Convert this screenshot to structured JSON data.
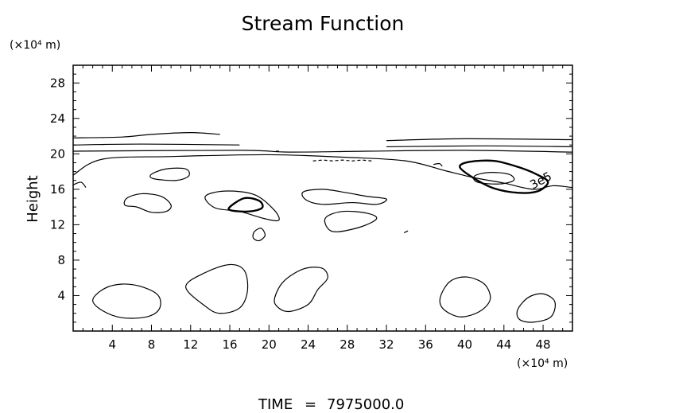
{
  "chart_data": {
    "type": "contour",
    "title": "Stream Function",
    "ylabel": "Height",
    "x_unit": "(×10⁴ m)",
    "y_unit": "(×10⁴ m)",
    "xlim": [
      0,
      51
    ],
    "ylim": [
      0,
      30
    ],
    "x_ticks": [
      4,
      8,
      12,
      16,
      20,
      24,
      28,
      32,
      36,
      40,
      44,
      48
    ],
    "y_ticks": [
      4,
      8,
      12,
      16,
      20,
      24,
      28
    ],
    "contour_label": "3e5",
    "contours": [
      {
        "level": "low",
        "points": [
          [
            3,
            2.3
          ],
          [
            2,
            3.5
          ],
          [
            3.2,
            4.8
          ],
          [
            5,
            5.3
          ],
          [
            7,
            5
          ],
          [
            8.7,
            4
          ],
          [
            8.8,
            2.5
          ],
          [
            7.5,
            1.6
          ],
          [
            5,
            1.5
          ]
        ]
      },
      {
        "level": "low",
        "points": [
          [
            11.5,
            5
          ],
          [
            13.5,
            6.6
          ],
          [
            16,
            7.5
          ],
          [
            17.5,
            6.8
          ],
          [
            17.8,
            4.5
          ],
          [
            17,
            2.6
          ],
          [
            15,
            2
          ],
          [
            13.5,
            2.8
          ]
        ]
      },
      {
        "level": "low",
        "points": [
          [
            20.6,
            3.8
          ],
          [
            21.5,
            5.6
          ],
          [
            23.5,
            7
          ],
          [
            25.4,
            7.1
          ],
          [
            26,
            6
          ],
          [
            25,
            4.7
          ],
          [
            24,
            3
          ],
          [
            22,
            2.2
          ],
          [
            20.8,
            2.8
          ]
        ]
      },
      {
        "level": "low",
        "points": [
          [
            37.5,
            3.8
          ],
          [
            38.5,
            5.6
          ],
          [
            40.2,
            6.1
          ],
          [
            42,
            5.3
          ],
          [
            42.6,
            3.6
          ],
          [
            41.5,
            2.2
          ],
          [
            39.5,
            1.6
          ],
          [
            37.8,
            2.5
          ]
        ]
      },
      {
        "level": "low",
        "points": [
          [
            45.4,
            2.4
          ],
          [
            46.5,
            3.8
          ],
          [
            48,
            4.2
          ],
          [
            49.2,
            3.3
          ],
          [
            48.8,
            1.6
          ],
          [
            47,
            1
          ],
          [
            45.6,
            1.3
          ]
        ]
      },
      {
        "level": "low",
        "points": [
          [
            5.5,
            15
          ],
          [
            7,
            15.5
          ],
          [
            9,
            15.2
          ],
          [
            10,
            14.2
          ],
          [
            9.5,
            13.5
          ],
          [
            8,
            13.4
          ],
          [
            6.5,
            14
          ],
          [
            5.3,
            14.2
          ]
        ]
      },
      {
        "level": "low",
        "points": [
          [
            8,
            17.7
          ],
          [
            9.5,
            18.3
          ],
          [
            11.5,
            18.3
          ],
          [
            11.8,
            17.5
          ],
          [
            10.5,
            17
          ],
          [
            8.2,
            17.2
          ]
        ]
      },
      {
        "level": "low",
        "points": [
          [
            13.5,
            15.2
          ],
          [
            15.5,
            15.8
          ],
          [
            18.5,
            15.4
          ],
          [
            20.5,
            13.7
          ],
          [
            21,
            12.5
          ],
          [
            19.5,
            12.7
          ],
          [
            17,
            13.5
          ],
          [
            14.5,
            13.9
          ]
        ]
      },
      {
        "level": "low",
        "points": [
          [
            18.5,
            11.2
          ],
          [
            19.2,
            11.6
          ],
          [
            19.6,
            10.8
          ],
          [
            19,
            10.2
          ],
          [
            18.4,
            10.5
          ]
        ]
      },
      {
        "level": "low",
        "points": [
          [
            23.5,
            15.7
          ],
          [
            25.5,
            16
          ],
          [
            28,
            15.6
          ],
          [
            30,
            15.2
          ],
          [
            32,
            14.9
          ],
          [
            31,
            14.3
          ],
          [
            28.5,
            14.5
          ],
          [
            25.5,
            14.3
          ],
          [
            23.8,
            14.8
          ]
        ]
      },
      {
        "level": "low",
        "points": [
          [
            25.8,
            12.8
          ],
          [
            27.5,
            13.5
          ],
          [
            30,
            13.3
          ],
          [
            31,
            12.7
          ],
          [
            29.5,
            11.8
          ],
          [
            27,
            11.2
          ],
          [
            26,
            11.6
          ]
        ]
      },
      {
        "level": "low",
        "points": [
          [
            0,
            17.6
          ],
          [
            3,
            19.4
          ],
          [
            10,
            19.7
          ],
          [
            20,
            19.9
          ],
          [
            28,
            19.6
          ],
          [
            34,
            19.2
          ],
          [
            38,
            18.1
          ],
          [
            41,
            17.3
          ],
          [
            44,
            16.7
          ],
          [
            47,
            16
          ],
          [
            49,
            16.4
          ],
          [
            51,
            16.2
          ]
        ]
      },
      {
        "level": "low",
        "points": [
          [
            0,
            16.5
          ],
          [
            0.8,
            16.8
          ],
          [
            1.3,
            16.2
          ]
        ]
      },
      {
        "level": "low",
        "points": [
          [
            0,
            20.3
          ],
          [
            17,
            20.4
          ],
          [
            22,
            20.2
          ],
          [
            30,
            20.3
          ],
          [
            40,
            20.4
          ],
          [
            51,
            20.2
          ]
        ]
      },
      {
        "level": "low",
        "points": [
          [
            0,
            21
          ],
          [
            7,
            21.1
          ],
          [
            17,
            21
          ]
        ]
      },
      {
        "level": "low",
        "points": [
          [
            32,
            20.8
          ],
          [
            42,
            20.9
          ],
          [
            51,
            20.8
          ]
        ]
      },
      {
        "level": "low",
        "points": [
          [
            0,
            21.8
          ],
          [
            5,
            21.9
          ],
          [
            8,
            22.2
          ],
          [
            12,
            22.4
          ],
          [
            15,
            22.2
          ]
        ]
      },
      {
        "level": "low",
        "points": [
          [
            32,
            21.5
          ],
          [
            40,
            21.7
          ],
          [
            51,
            21.6
          ]
        ]
      },
      {
        "level": "low",
        "points": [
          [
            36.8,
            18.8
          ],
          [
            37.4,
            18.9
          ],
          [
            37.7,
            18.6
          ]
        ]
      },
      {
        "level": "low",
        "points": [
          [
            33.8,
            11.1
          ],
          [
            34.2,
            11.3
          ]
        ]
      },
      {
        "level": "low",
        "points": [
          [
            41,
            17.5
          ],
          [
            42.5,
            17.9
          ],
          [
            44.5,
            17.7
          ],
          [
            45,
            17
          ],
          [
            43.5,
            16.6
          ],
          [
            41.3,
            16.8
          ]
        ]
      },
      {
        "level": "bold",
        "points": [
          [
            16,
            14
          ],
          [
            17.5,
            15
          ],
          [
            19,
            14.7
          ],
          [
            19.3,
            13.9
          ],
          [
            18,
            13.5
          ],
          [
            16.2,
            13.6
          ]
        ]
      },
      {
        "level": "bold",
        "points": [
          [
            39.5,
            18.5
          ],
          [
            40.5,
            19.1
          ],
          [
            43,
            19.2
          ],
          [
            45.5,
            18.5
          ],
          [
            47.5,
            17.6
          ],
          [
            48.5,
            16.8
          ],
          [
            47.5,
            15.8
          ],
          [
            45.5,
            15.6
          ],
          [
            43,
            16.1
          ],
          [
            41,
            17.2
          ]
        ]
      }
    ],
    "dashed_segments": [
      {
        "points": [
          [
            24.5,
            19.2
          ],
          [
            25.5,
            19.3
          ],
          [
            26.5,
            19.2
          ],
          [
            27.5,
            19.3
          ],
          [
            28.5,
            19.2
          ],
          [
            29.5,
            19.3
          ],
          [
            30.5,
            19.2
          ]
        ]
      },
      {
        "points": [
          [
            20.7,
            20.3
          ],
          [
            21.2,
            20.3
          ]
        ]
      }
    ]
  },
  "footer": {
    "time_label": "TIME",
    "equals": "=",
    "time_value": "7975000.0"
  }
}
